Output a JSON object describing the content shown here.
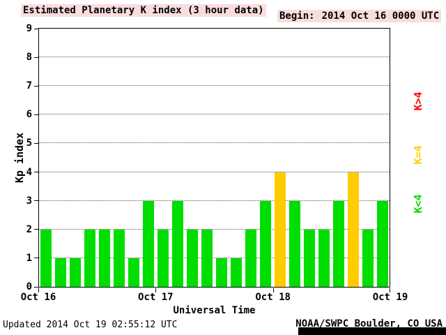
{
  "header": {
    "title": "Estimated Planetary K index (3 hour data)",
    "begin_label": "Begin:",
    "begin_value": "2014 Oct 16 0000 UTC"
  },
  "footer": {
    "updated": "Updated 2014 Oct 19 02:55:12 UTC",
    "source": "NOAA/SWPC Boulder, CO USA"
  },
  "legend": [
    {
      "label": "K>4",
      "color": "#ff0000"
    },
    {
      "label": "K=4",
      "color": "#ffcc00"
    },
    {
      "label": "K<4",
      "color": "#00dd00"
    }
  ],
  "chart_data": {
    "type": "bar",
    "title": "Estimated Planetary K index (3 hour data)",
    "xlabel": "Universal Time",
    "ylabel": "Kp index",
    "ylim": [
      0,
      9
    ],
    "y_tick_step": 1,
    "grid": "dotted horizontal lines at Kp 1-8",
    "x_ticks": [
      "Oct 16",
      "Oct 17",
      "Oct 18",
      "Oct 19"
    ],
    "bars_per_day": 8,
    "interval_hours": 3,
    "values": [
      2,
      1,
      1,
      2,
      2,
      2,
      1,
      3,
      2,
      3,
      2,
      2,
      1,
      1,
      2,
      3,
      4,
      3,
      2,
      2,
      3,
      4,
      2,
      3
    ],
    "colors": {
      "low": "#00dd00",
      "mid": "#ffcc00",
      "high": "#ff0000"
    },
    "color_rule": "green when K<4, yellow when K=4, red when K>4"
  }
}
